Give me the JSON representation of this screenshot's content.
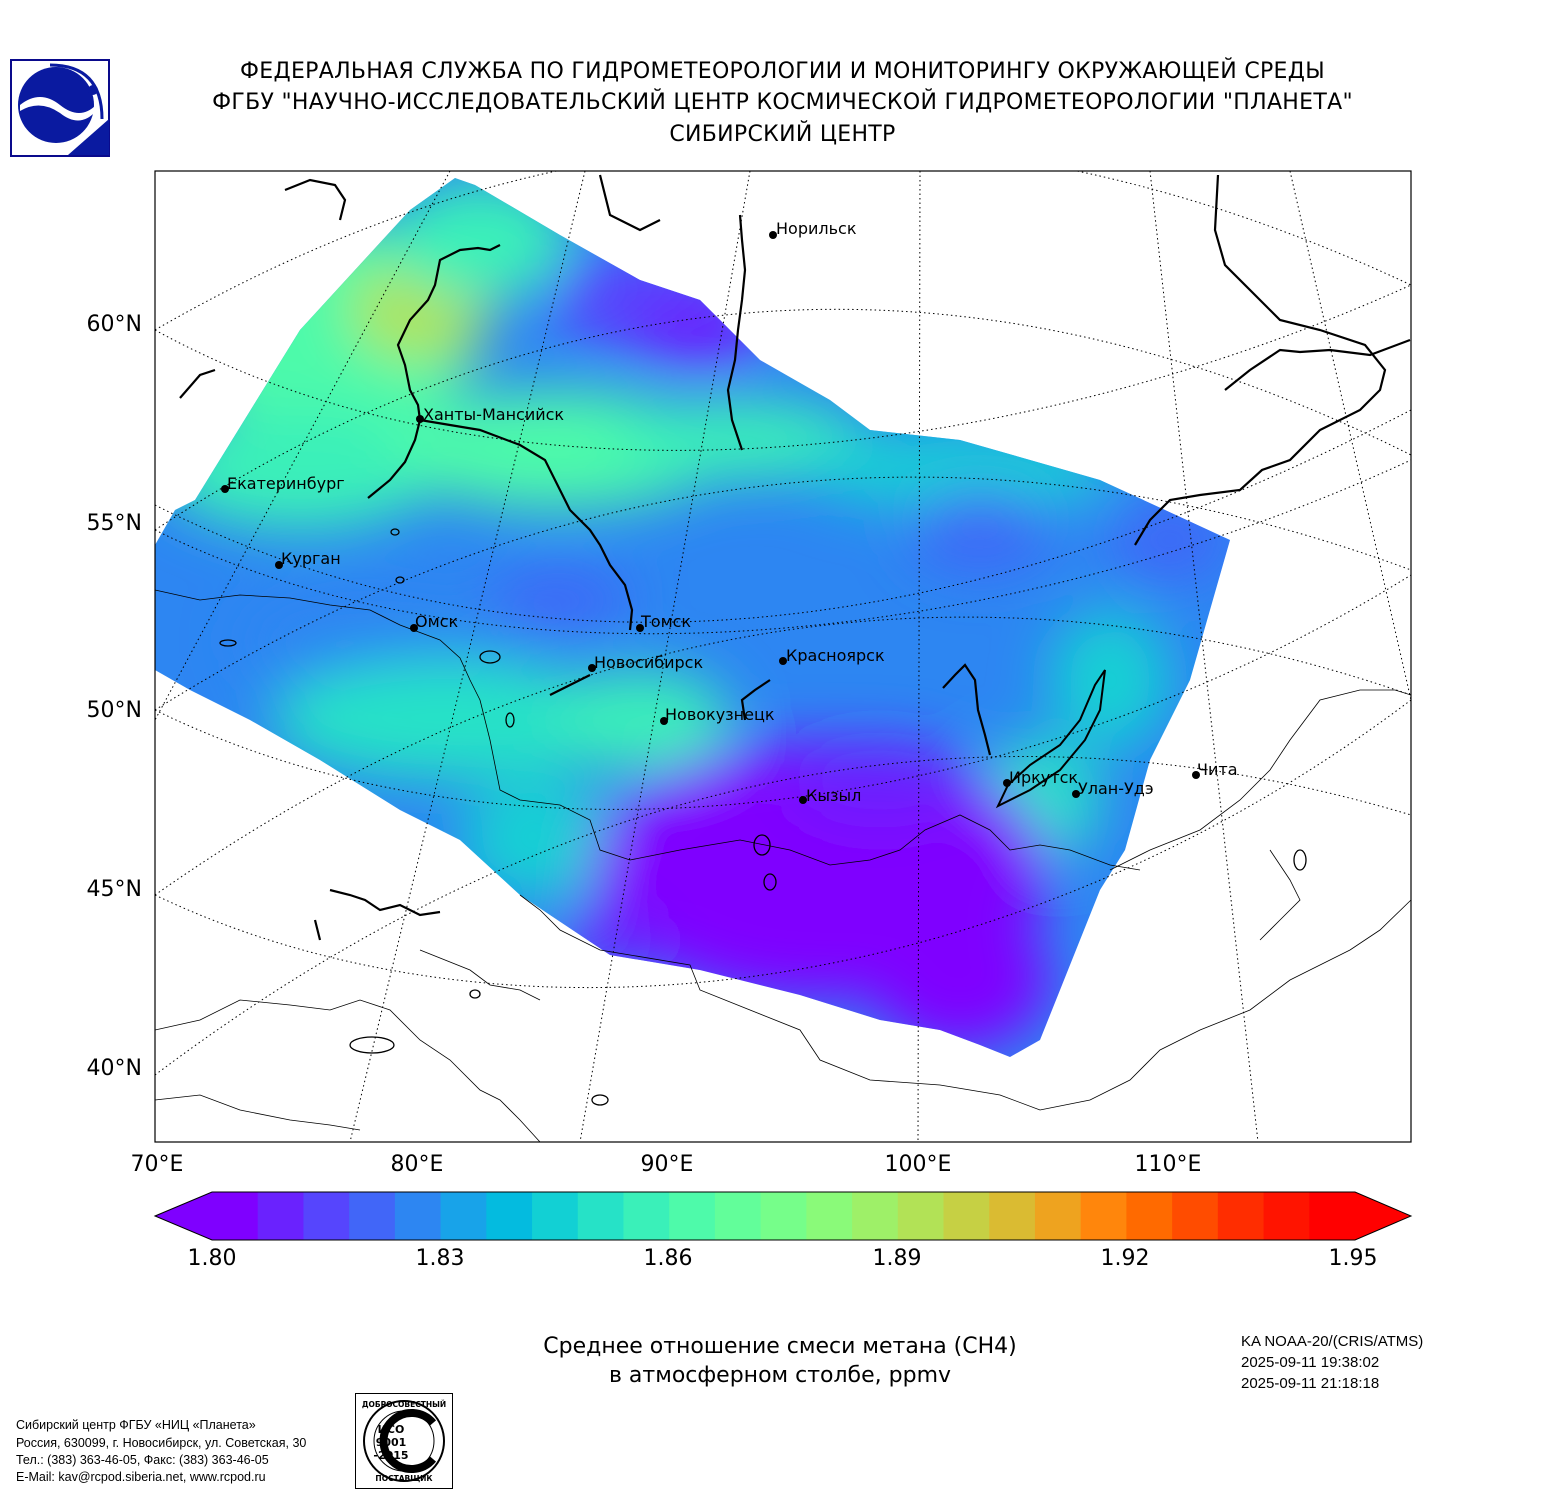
{
  "header": {
    "line1": "ФЕДЕРАЛЬНАЯ СЛУЖБА ПО ГИДРОМЕТЕОРОЛОГИИ И МОНИТОРИНГУ ОКРУЖАЮЩЕЙ СРЕДЫ",
    "line2": "ФГБУ \"НАУЧНО-ИССЛЕДОВАТЕЛЬСКИЙ ЦЕНТР КОСМИЧЕСКОЙ ГИДРОМЕТЕОРОЛОГИИ \"ПЛАНЕТА\"",
    "line3": "СИБИРСКИЙ ЦЕНТР"
  },
  "map": {
    "lat_labels": [
      "60°N",
      "55°N",
      "50°N",
      "45°N",
      "40°N"
    ],
    "lon_labels": [
      "70°E",
      "80°E",
      "90°E",
      "100°E",
      "110°E"
    ],
    "cities": [
      "Норильск",
      "Ханты-Мансийск",
      "Екатеринбург",
      "Курган",
      "Омск",
      "Томск",
      "Новосибирск",
      "Красноярск",
      "Новокузнецк",
      "Иркутск",
      "Улан-Удэ",
      "Чита",
      "Кызыл"
    ]
  },
  "colorbar": {
    "ticks": [
      "1.80",
      "1.83",
      "1.86",
      "1.89",
      "1.92",
      "1.95"
    ],
    "colors": [
      "#7f00ff",
      "#6a22fe",
      "#5645fd",
      "#4166f8",
      "#2d86f2",
      "#18a3e9",
      "#04bbdf",
      "#12d0d4",
      "#26e2c7",
      "#3af0b9",
      "#4efaaa",
      "#62fe9a",
      "#76fe8a",
      "#8afa79",
      "#9ef068",
      "#b2e256",
      "#c6d044",
      "#dabb32",
      "#eea31f",
      "#ff860c",
      "#ff6a00",
      "#ff4c00",
      "#ff2d00",
      "#ff1400",
      "#ff0000"
    ]
  },
  "caption": {
    "line1": "Среднее отношение смеси метана (CH4)",
    "line2": "в атмосферном столбе, ppmv"
  },
  "satellite": {
    "name": "KA NOAA-20/(CRIS/ATMS)",
    "start": "2025-09-11 19:38:02",
    "end": "2025-09-11 21:18:18"
  },
  "address": {
    "line1": "Сибирский центр ФГБУ «НИЦ «Планета»",
    "line2": "Россия, 630099, г. Новосибирск, ул. Советская, 30",
    "line3": "Тел.: (383) 363-46-05, Факс: (383) 363-46-05",
    "line4": "E-Mail: kav@rcpod.siberia.net, www.rcpod.ru"
  },
  "iso_badge": {
    "top_text": "ДОБРОСОВЕСТНЫЙ",
    "std1": "ИСО",
    "std2": "9001",
    "std3": "-2015",
    "bottom_text": "ПОСТАВЩИК"
  },
  "logo": {
    "icon": "planeta-logo-icon"
  }
}
